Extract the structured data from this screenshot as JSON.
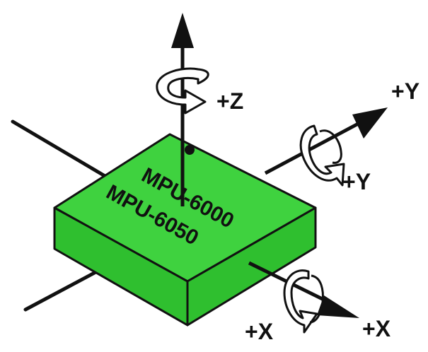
{
  "chip": {
    "line1": "MPU-6000",
    "line2": "MPU-6050",
    "color_top": "#3fd23f",
    "color_side": "#2fbf2f",
    "outline": "#111111"
  },
  "axes": {
    "z_label": "+Z",
    "y_label": "+Y",
    "y_rot_label": "+Y",
    "x_rot_label": "+X",
    "x_label": "+X"
  },
  "icons": [
    "rotation-arrow-icon",
    "axis-arrow-icon",
    "orientation-dot-icon"
  ]
}
